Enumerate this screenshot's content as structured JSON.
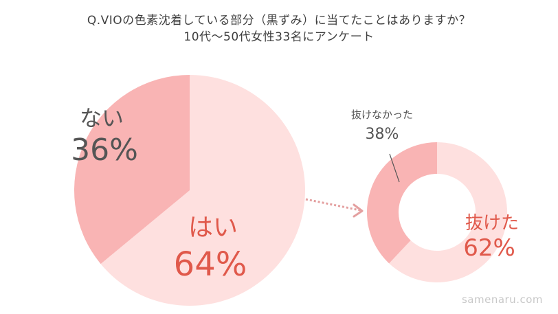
{
  "header": {
    "question": "Q.VIOの色素沈着している部分（黒ずみ）に当てたことはありますか？",
    "subtitle": "10代〜50代女性33名にアンケート"
  },
  "watermark": "samenaru.com",
  "colors": {
    "slice_light": "#fee0df",
    "slice_dark": "#f9b4b4",
    "text_red": "#e0594b",
    "text_gray": "#555555",
    "arrow": "#e4a0a0"
  },
  "chart_data": [
    {
      "type": "pie",
      "slices": [
        {
          "label": "はい",
          "value": 64,
          "display": "64%"
        },
        {
          "label": "ない",
          "value": 36,
          "display": "36%"
        }
      ]
    },
    {
      "type": "donut",
      "slices": [
        {
          "label": "抜けた",
          "value": 62,
          "display": "62%"
        },
        {
          "label": "抜けなかった",
          "value": 38,
          "display": "38%"
        }
      ]
    }
  ]
}
